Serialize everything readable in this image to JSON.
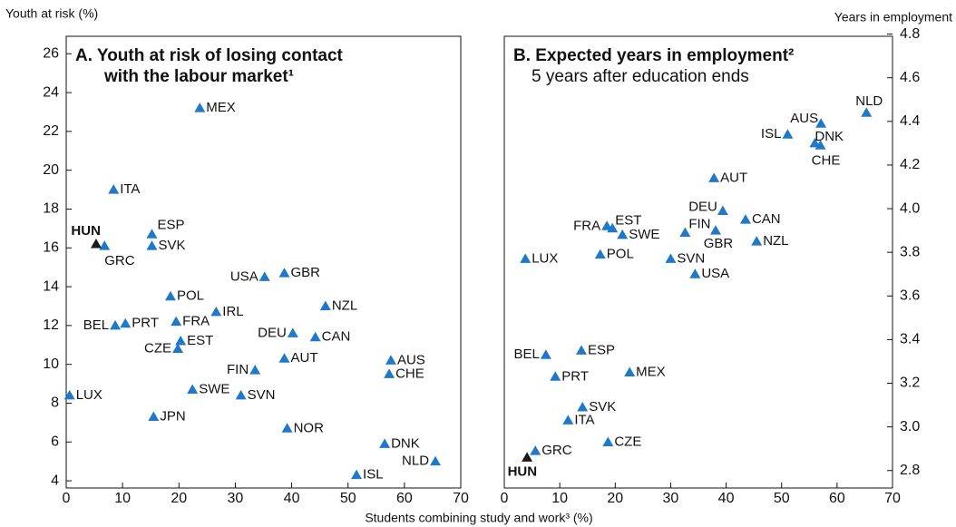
{
  "y_axis_title_left": "Youth at risk (%)",
  "y_axis_title_right": "Years in employment",
  "x_axis_title": "Students combining study and work³ (%)",
  "chart_data": [
    {
      "type": "scatter",
      "title": "A. Youth at risk of losing contact",
      "subtitle": "with the labour market¹",
      "xlim": [
        0,
        70
      ],
      "xticks": [
        0,
        10,
        20,
        30,
        40,
        50,
        60,
        70
      ],
      "ylim": [
        3.63,
        26.9
      ],
      "yticks": [
        4,
        6,
        8,
        10,
        12,
        14,
        16,
        18,
        20,
        22,
        24,
        26
      ],
      "y_side": "left",
      "grid": false,
      "series": [
        {
          "color": "#1f78c8",
          "labels": [
            "MEX",
            "ITA",
            "ESP",
            "SVK",
            "GRC",
            "USA",
            "GBR",
            "POL",
            "NZL",
            "IRL",
            "BEL",
            "PRT",
            "FRA",
            "DEU",
            "CAN",
            "EST",
            "CZE",
            "AUS",
            "AUT",
            "FIN",
            "CHE",
            "SWE",
            "SVN",
            "LUX",
            "JPN",
            "NOR",
            "DNK",
            "NLD",
            "ISL"
          ],
          "x": [
            23.7,
            8.4,
            15.2,
            15.2,
            6.8,
            35.2,
            38.7,
            18.5,
            46,
            26.6,
            8.7,
            10.5,
            19.5,
            40.2,
            44.2,
            20.3,
            19.8,
            57.6,
            38.7,
            33.5,
            57.3,
            22.4,
            31,
            0.6,
            15.5,
            39.2,
            56.5,
            65.5,
            51.5
          ],
          "values": [
            23.2,
            19.0,
            16.7,
            16.1,
            16.1,
            14.5,
            14.7,
            13.5,
            13.0,
            12.7,
            12.0,
            12.1,
            12.2,
            11.6,
            11.4,
            11.2,
            10.8,
            10.2,
            10.3,
            9.7,
            9.5,
            8.7,
            8.4,
            8.4,
            7.3,
            6.7,
            5.9,
            5.0,
            4.3
          ]
        },
        {
          "color": "#1a1a1a",
          "labels": [
            "HUN"
          ],
          "x": [
            5.3
          ],
          "values": [
            16.2
          ]
        }
      ]
    },
    {
      "type": "scatter",
      "title": "B. Expected years in employment²",
      "subtitle": "5 years after education ends",
      "xlim": [
        0,
        70
      ],
      "xticks": [
        0,
        10,
        20,
        30,
        40,
        50,
        60,
        70
      ],
      "ylim": [
        2.72,
        4.79
      ],
      "yticks": [
        2.8,
        {
          "value": 3,
          "label": "3.0"
        },
        3.2,
        3.4,
        3.6,
        3.8,
        {
          "value": 4,
          "label": "4.0"
        },
        4.2,
        4.4,
        4.6,
        4.8
      ],
      "y_side": "right",
      "grid": false,
      "series": [
        {
          "color": "#1f78c8",
          "labels": [
            "NLD",
            "AUS",
            "ISL",
            "DNK",
            "CHE",
            "AUT",
            "DEU",
            "CAN",
            "FRA",
            "EST",
            "FIN",
            "SWE",
            "GBR",
            "NZL",
            "POL",
            "LUX",
            "SVN",
            "USA",
            "BEL",
            "ESP",
            "PRT",
            "MEX",
            "SVK",
            "ITA",
            "CZE",
            "GRC"
          ],
          "x": [
            65.3,
            57.1,
            51.1,
            56,
            57,
            37.8,
            39.4,
            43.5,
            18.5,
            19.5,
            32.6,
            21.3,
            38.1,
            45.5,
            17.3,
            3.8,
            30,
            34.4,
            7.5,
            13.9,
            9.2,
            22.6,
            14.1,
            11.5,
            18.7,
            5.6
          ],
          "values": [
            4.44,
            4.39,
            4.34,
            4.3,
            4.29,
            4.14,
            3.99,
            3.95,
            3.92,
            3.91,
            3.89,
            3.88,
            3.9,
            3.85,
            3.79,
            3.77,
            3.77,
            3.7,
            3.33,
            3.35,
            3.23,
            3.25,
            3.09,
            3.03,
            2.93,
            2.89
          ]
        },
        {
          "color": "#1a1a1a",
          "labels": [
            "HUN"
          ],
          "x": [
            4.1
          ],
          "values": [
            2.86
          ]
        }
      ]
    }
  ]
}
